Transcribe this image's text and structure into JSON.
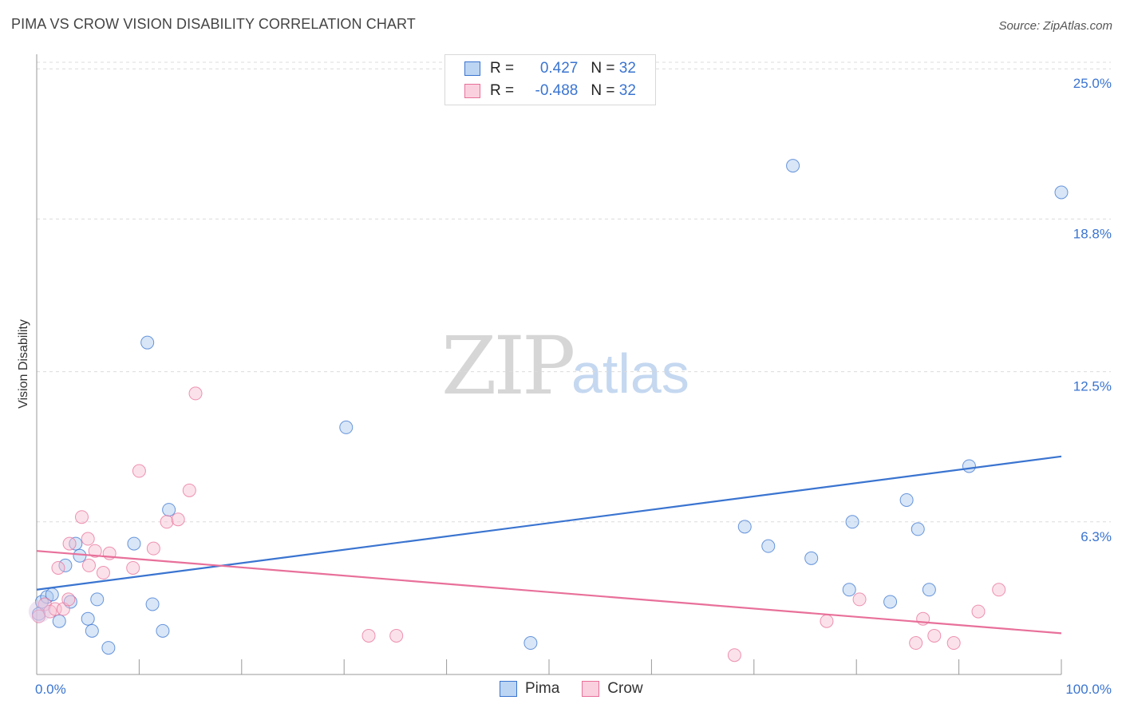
{
  "title": "PIMA VS CROW VISION DISABILITY CORRELATION CHART",
  "source": "Source: ZipAtlas.com",
  "watermark": {
    "zip": "ZIP",
    "atlas": "atlas"
  },
  "legend": {
    "rows": [
      {
        "r_label": "R = ",
        "r_value": "0.427",
        "n_label": "N = ",
        "n_value": "32"
      },
      {
        "r_label": "R = ",
        "r_value": "-0.488",
        "n_label": "N = ",
        "n_value": "32"
      }
    ]
  },
  "colors": {
    "pima": "#3a74d0",
    "pima_fill": "#a9c8ee",
    "crow": "#e8709a",
    "crow_fill": "#f6bed0",
    "grid": "#dcdcdc",
    "tick_label": "#3a74d0"
  },
  "chart_data": {
    "type": "scatter",
    "title": "PIMA VS CROW VISION DISABILITY CORRELATION CHART",
    "xlabel": "",
    "ylabel": "Vision Disability",
    "x_tick_labels": [
      "0.0%",
      "100.0%"
    ],
    "y_tick_labels": [
      "6.3%",
      "12.5%",
      "18.8%",
      "25.0%"
    ],
    "y_ticks": [
      6.3,
      12.5,
      18.8,
      25.0
    ],
    "xlim": [
      0,
      100
    ],
    "ylim": [
      0,
      25.6
    ],
    "grid": true,
    "legend_position": "bottom",
    "series": [
      {
        "name": "Pima",
        "points": [
          [
            0.5,
            3.0
          ],
          [
            1.0,
            3.2
          ],
          [
            1.5,
            3.3
          ],
          [
            2.2,
            2.2
          ],
          [
            2.8,
            4.5
          ],
          [
            3.3,
            3.0
          ],
          [
            3.8,
            5.4
          ],
          [
            4.2,
            4.9
          ],
          [
            5.0,
            2.3
          ],
          [
            5.4,
            1.8
          ],
          [
            5.9,
            3.1
          ],
          [
            7.0,
            1.1
          ],
          [
            9.5,
            5.4
          ],
          [
            10.8,
            13.7
          ],
          [
            11.3,
            2.9
          ],
          [
            12.3,
            1.8
          ],
          [
            12.9,
            6.8
          ],
          [
            30.2,
            10.2
          ],
          [
            48.2,
            1.3
          ],
          [
            69.1,
            6.1
          ],
          [
            71.4,
            5.3
          ],
          [
            73.8,
            21.0
          ],
          [
            75.6,
            4.8
          ],
          [
            79.3,
            3.5
          ],
          [
            79.6,
            6.3
          ],
          [
            83.3,
            3.0
          ],
          [
            84.9,
            7.2
          ],
          [
            86.0,
            6.0
          ],
          [
            87.1,
            3.5
          ],
          [
            91.0,
            8.6
          ],
          [
            100.0,
            19.9
          ],
          [
            0.2,
            2.5
          ]
        ],
        "trend": [
          [
            0,
            3.5
          ],
          [
            100,
            9.0
          ]
        ]
      },
      {
        "name": "Crow",
        "points": [
          [
            0.2,
            2.4
          ],
          [
            0.8,
            2.9
          ],
          [
            1.3,
            2.6
          ],
          [
            1.8,
            2.7
          ],
          [
            2.1,
            4.4
          ],
          [
            2.6,
            2.7
          ],
          [
            3.1,
            3.1
          ],
          [
            3.2,
            5.4
          ],
          [
            4.4,
            6.5
          ],
          [
            5.0,
            5.6
          ],
          [
            5.1,
            4.5
          ],
          [
            5.7,
            5.1
          ],
          [
            6.5,
            4.2
          ],
          [
            7.1,
            5.0
          ],
          [
            9.4,
            4.4
          ],
          [
            10.0,
            8.4
          ],
          [
            11.4,
            5.2
          ],
          [
            12.7,
            6.3
          ],
          [
            13.8,
            6.4
          ],
          [
            14.9,
            7.6
          ],
          [
            15.5,
            11.6
          ],
          [
            32.4,
            1.6
          ],
          [
            35.1,
            1.6
          ],
          [
            68.1,
            0.8
          ],
          [
            77.1,
            2.2
          ],
          [
            80.3,
            3.1
          ],
          [
            85.8,
            1.3
          ],
          [
            86.5,
            2.3
          ],
          [
            87.6,
            1.6
          ],
          [
            89.5,
            1.3
          ],
          [
            91.9,
            2.6
          ],
          [
            93.9,
            3.5
          ]
        ],
        "trend": [
          [
            0,
            5.1
          ],
          [
            100,
            1.7
          ]
        ]
      }
    ]
  }
}
